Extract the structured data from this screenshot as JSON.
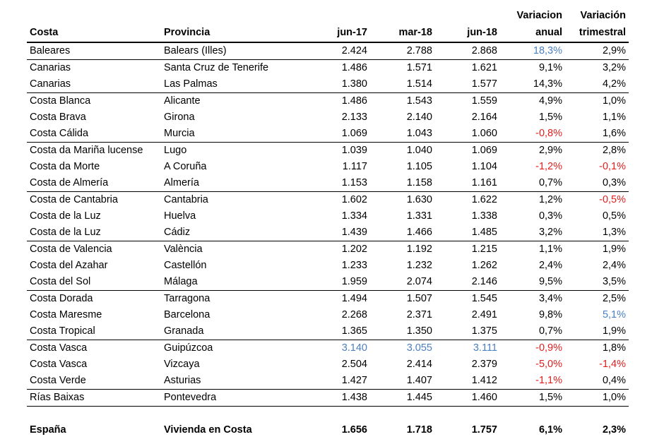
{
  "header": {
    "costa": "Costa",
    "provincia": "Provincia",
    "jun17": "jun-17",
    "mar18": "mar-18",
    "jun18": "jun-18",
    "var_anual_1": "Variacion",
    "var_anual_2": "anual",
    "var_trim_1": "Variación",
    "var_trim_2": "trimestral"
  },
  "rows": [
    {
      "costa": "Baleares",
      "provincia": "Balears (Illes)",
      "jun17": "2.424",
      "mar18": "2.788",
      "jun18": "2.868",
      "anual": "18,3%",
      "trim": "2,9%"
    },
    {
      "costa": "Canarias",
      "provincia": "Santa Cruz de Tenerife",
      "jun17": "1.486",
      "mar18": "1.571",
      "jun18": "1.621",
      "anual": "9,1%",
      "trim": "3,2%"
    },
    {
      "costa": "Canarias",
      "provincia": "Las Palmas",
      "jun17": "1.380",
      "mar18": "1.514",
      "jun18": "1.577",
      "anual": "14,3%",
      "trim": "4,2%"
    },
    {
      "costa": "Costa Blanca",
      "provincia": "Alicante",
      "jun17": "1.486",
      "mar18": "1.543",
      "jun18": "1.559",
      "anual": "4,9%",
      "trim": "1,0%"
    },
    {
      "costa": "Costa Brava",
      "provincia": "Girona",
      "jun17": "2.133",
      "mar18": "2.140",
      "jun18": "2.164",
      "anual": "1,5%",
      "trim": "1,1%"
    },
    {
      "costa": "Costa Cálida",
      "provincia": "Murcia",
      "jun17": "1.069",
      "mar18": "1.043",
      "jun18": "1.060",
      "anual": "-0,8%",
      "trim": "1,6%"
    },
    {
      "costa": "Costa da Mariña lucense",
      "provincia": "Lugo",
      "jun17": "1.039",
      "mar18": "1.040",
      "jun18": "1.069",
      "anual": "2,9%",
      "trim": "2,8%"
    },
    {
      "costa": "Costa da Morte",
      "provincia": "A Coruña",
      "jun17": "1.117",
      "mar18": "1.105",
      "jun18": "1.104",
      "anual": "-1,2%",
      "trim": "-0,1%"
    },
    {
      "costa": "Costa de Almería",
      "provincia": "Almería",
      "jun17": "1.153",
      "mar18": "1.158",
      "jun18": "1.161",
      "anual": "0,7%",
      "trim": "0,3%"
    },
    {
      "costa": "Costa de Cantabria",
      "provincia": "Cantabria",
      "jun17": "1.602",
      "mar18": "1.630",
      "jun18": "1.622",
      "anual": "1,2%",
      "trim": "-0,5%"
    },
    {
      "costa": "Costa de la Luz",
      "provincia": "Huelva",
      "jun17": "1.334",
      "mar18": "1.331",
      "jun18": "1.338",
      "anual": "0,3%",
      "trim": "0,5%"
    },
    {
      "costa": "Costa de la Luz",
      "provincia": "Cádiz",
      "jun17": "1.439",
      "mar18": "1.466",
      "jun18": "1.485",
      "anual": "3,2%",
      "trim": "1,3%"
    },
    {
      "costa": "Costa de Valencia",
      "provincia": "València",
      "jun17": "1.202",
      "mar18": "1.192",
      "jun18": "1.215",
      "anual": "1,1%",
      "trim": "1,9%"
    },
    {
      "costa": "Costa del Azahar",
      "provincia": "Castellón",
      "jun17": "1.233",
      "mar18": "1.232",
      "jun18": "1.262",
      "anual": "2,4%",
      "trim": "2,4%"
    },
    {
      "costa": "Costa del Sol",
      "provincia": "Málaga",
      "jun17": "1.959",
      "mar18": "2.074",
      "jun18": "2.146",
      "anual": "9,5%",
      "trim": "3,5%"
    },
    {
      "costa": "Costa Dorada",
      "provincia": "Tarragona",
      "jun17": "1.494",
      "mar18": "1.507",
      "jun18": "1.545",
      "anual": "3,4%",
      "trim": "2,5%"
    },
    {
      "costa": "Costa Maresme",
      "provincia": "Barcelona",
      "jun17": "2.268",
      "mar18": "2.371",
      "jun18": "2.491",
      "anual": "9,8%",
      "trim": "5,1%"
    },
    {
      "costa": "Costa Tropical",
      "provincia": "Granada",
      "jun17": "1.365",
      "mar18": "1.350",
      "jun18": "1.375",
      "anual": "0,7%",
      "trim": "1,9%"
    },
    {
      "costa": "Costa Vasca",
      "provincia": "Guipúzcoa",
      "jun17": "3.140",
      "mar18": "3.055",
      "jun18": "3.111",
      "anual": "-0,9%",
      "trim": "1,8%"
    },
    {
      "costa": "Costa Vasca",
      "provincia": "Vizcaya",
      "jun17": "2.504",
      "mar18": "2.414",
      "jun18": "2.379",
      "anual": "-5,0%",
      "trim": "-1,4%"
    },
    {
      "costa": "Costa Verde",
      "provincia": "Asturias",
      "jun17": "1.427",
      "mar18": "1.407",
      "jun18": "1.412",
      "anual": "-1,1%",
      "trim": "0,4%"
    },
    {
      "costa": "Rías Baixas",
      "provincia": "Pontevedra",
      "jun17": "1.438",
      "mar18": "1.445",
      "jun18": "1.460",
      "anual": "1,5%",
      "trim": "1,0%"
    }
  ],
  "total": {
    "costa": "España",
    "provincia": "Vivienda en Costa",
    "jun17": "1.656",
    "mar18": "1.718",
    "jun18": "1.757",
    "anual": "6,1%",
    "trim": "2,3%"
  },
  "colors": {
    "highlight_blue": "#4a7fc1",
    "negative_red": "#e02020",
    "text": "#000000"
  }
}
